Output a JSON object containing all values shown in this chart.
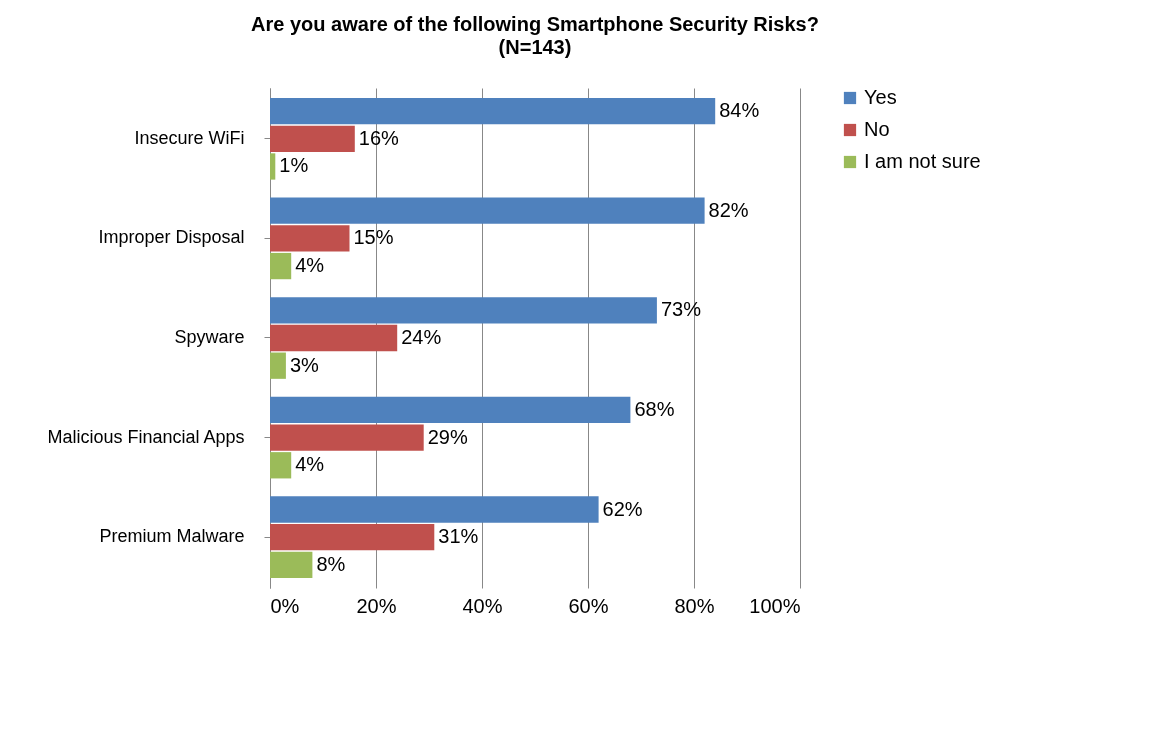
{
  "chart_data": {
    "type": "bar",
    "orientation": "horizontal",
    "title": "Are you aware of the following Smartphone Security Risks?",
    "subtitle": "(N=143)",
    "categories": [
      "Insecure WiFi",
      "Improper Disposal",
      "Spyware",
      "Malicious Financial Apps",
      "Premium Malware"
    ],
    "series": [
      {
        "name": "Yes",
        "color": "#4f81bd",
        "values": [
          84,
          82,
          73,
          68,
          62
        ],
        "value_labels": [
          "84%",
          "82%",
          "73%",
          "68%",
          "62%"
        ]
      },
      {
        "name": "No",
        "color": "#c0504d",
        "values": [
          16,
          15,
          24,
          29,
          31
        ],
        "value_labels": [
          "16%",
          "15%",
          "24%",
          "29%",
          "31%"
        ]
      },
      {
        "name": "I am not sure",
        "color": "#9bbb59",
        "values": [
          1,
          4,
          3,
          4,
          8
        ],
        "value_labels": [
          "1%",
          "4%",
          "3%",
          "4%",
          "8%"
        ]
      }
    ],
    "xlim": [
      0,
      100
    ],
    "xticks": [
      {
        "value": 0,
        "label": "0%"
      },
      {
        "value": 20,
        "label": "20%"
      },
      {
        "value": 40,
        "label": "40%"
      },
      {
        "value": 60,
        "label": "60%"
      },
      {
        "value": 80,
        "label": "80%"
      },
      {
        "value": 100,
        "label": "100%"
      }
    ],
    "grid": "x",
    "legend": "right"
  }
}
